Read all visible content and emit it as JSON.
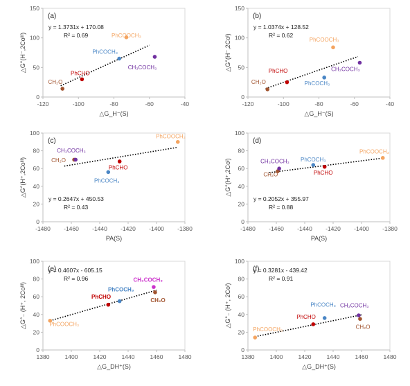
{
  "colors": {
    "CH2O": "#a0522d",
    "PhCHO": "#c00000",
    "PhCOCH3": "#4a86c5",
    "CH3COCH3": "#7030a0",
    "PhCOOCH3": "#f4a460",
    "CH3COCH3_e": "#cc33cc"
  },
  "chart_data": [
    {
      "id": "a",
      "type": "scatter",
      "panel_label": "(a)",
      "ylabel": "△G°(H⁻,2Coᴵᴵᴵ)",
      "xlabel": "△G_H⁻(S)",
      "xlim": [
        -120,
        -40
      ],
      "ylim": [
        0,
        150
      ],
      "xticks": [
        -120,
        -100,
        -80,
        -60,
        -40
      ],
      "yticks": [
        0,
        50,
        100,
        150
      ],
      "equation": "y = 1.3731x + 170.08",
      "r2": "R² = 0.69",
      "points": [
        {
          "name": "CH₂O",
          "key": "CH2O",
          "x": -109,
          "y": 14,
          "lx": -113,
          "ly": 22
        },
        {
          "name": "PhCHO",
          "key": "PhCHO",
          "x": -98,
          "y": 30,
          "lx": -99,
          "ly": 37
        },
        {
          "name": "PhCOCH₃",
          "key": "PhCOCH3",
          "x": -77,
          "y": 65,
          "lx": -85,
          "ly": 73
        },
        {
          "name": "CH₃COCH₃",
          "key": "CH3COCH3",
          "x": -57,
          "y": 68,
          "lx": -64,
          "ly": 47
        },
        {
          "name": "PhCOOCH₃",
          "key": "PhCOOCH3",
          "x": -73,
          "y": 101,
          "lx": -73,
          "ly": 101
        }
      ],
      "trend": {
        "slope": 1.3731,
        "intercept": 170.08,
        "x0": -110,
        "x1": -60
      }
    },
    {
      "id": "b",
      "type": "scatter",
      "panel_label": "(b)",
      "ylabel": "△G°(H⁻,2Coᴵ)",
      "xlabel": "△G_H⁻(S)",
      "xlim": [
        -120,
        -40
      ],
      "ylim": [
        0,
        150
      ],
      "xticks": [
        -120,
        -100,
        -80,
        -60,
        -40
      ],
      "yticks": [
        0,
        50,
        100,
        150
      ],
      "equation": "y = 1.0374x + 128.52",
      "r2": "R² = 0.62",
      "points": [
        {
          "name": "CH₂O",
          "key": "CH2O",
          "x": -109,
          "y": 13,
          "lx": -114,
          "ly": 22
        },
        {
          "name": "PhCHO",
          "key": "PhCHO",
          "x": -98,
          "y": 25,
          "lx": -103,
          "ly": 41
        },
        {
          "name": "PhCOCH₃",
          "key": "PhCOCH3",
          "x": -77,
          "y": 33,
          "lx": -81,
          "ly": 20
        },
        {
          "name": "CH₃COCH₃",
          "key": "CH3COCH3",
          "x": -57,
          "y": 58,
          "lx": -65,
          "ly": 44
        },
        {
          "name": "PhCOOCH₃",
          "key": "PhCOOCH3",
          "x": -72,
          "y": 84,
          "lx": -77,
          "ly": 94
        }
      ],
      "trend": {
        "slope": 1.0374,
        "intercept": 128.52,
        "x0": -110,
        "x1": -58
      }
    },
    {
      "id": "c",
      "type": "scatter",
      "panel_label": "(c)",
      "ylabel": "△G°(H⁺,2Coᴵᴵᴵ)",
      "xlabel": "PA(S)",
      "xlim": [
        -1480,
        -1380
      ],
      "ylim": [
        0,
        100
      ],
      "xticks": [
        -1480,
        -1460,
        -1440,
        -1420,
        -1400,
        -1380
      ],
      "yticks": [
        0,
        20,
        40,
        60,
        80,
        100
      ],
      "equation": "y = 0.2647x + 450.53",
      "r2": "R² = 0.43",
      "points": [
        {
          "name": "CH₂O",
          "key": "CH2O",
          "x": -1458,
          "y": 70,
          "lx": -1469,
          "ly": 67
        },
        {
          "name": "CH₃COCH₃",
          "key": "CH3COCH3",
          "x": -1457,
          "y": 70,
          "lx": -1460,
          "ly": 78
        },
        {
          "name": "PhCOCH₃",
          "key": "PhCOCH3",
          "x": -1434,
          "y": 56,
          "lx": -1435,
          "ly": 44
        },
        {
          "name": "PhCHO",
          "key": "PhCHO",
          "x": -1426,
          "y": 68,
          "lx": -1427,
          "ly": 59
        },
        {
          "name": "PhCOOCH₃",
          "key": "PhCOOCH3",
          "x": -1385,
          "y": 90,
          "lx": -1390,
          "ly": 94
        }
      ],
      "trend": {
        "slope": 0.2647,
        "intercept": 450.53,
        "x0": -1465,
        "x1": -1385
      }
    },
    {
      "id": "d",
      "type": "scatter",
      "panel_label": "(d)",
      "ylabel": "△G°(H⁺,2Coᴵ)",
      "xlabel": "PA(S)",
      "xlim": [
        -1480,
        -1380
      ],
      "ylim": [
        0,
        100
      ],
      "xticks": [
        -1480,
        -1460,
        -1440,
        -1420,
        -1400,
        -1380
      ],
      "yticks": [
        0,
        20,
        40,
        60,
        80,
        100
      ],
      "equation": "y = 0.2052x + 355.97",
      "r2": "R² = 0.88",
      "points": [
        {
          "name": "CH₂O",
          "key": "CH2O",
          "x": -1459,
          "y": 57,
          "lx": -1464,
          "ly": 51
        },
        {
          "name": "CH₃COCH₃",
          "key": "CH3COCH3",
          "x": -1458,
          "y": 60,
          "lx": -1461,
          "ly": 66
        },
        {
          "name": "PhCOCH₃",
          "key": "PhCOCH3",
          "x": -1434,
          "y": 64,
          "lx": -1434,
          "ly": 68
        },
        {
          "name": "PhCHO",
          "key": "PhCHO",
          "x": -1426,
          "y": 62,
          "lx": -1427,
          "ly": 53
        },
        {
          "name": "PhCOOCH₃",
          "key": "PhCOOCH3",
          "x": -1385,
          "y": 72,
          "lx": -1391,
          "ly": 77
        }
      ],
      "trend": {
        "slope": 0.2052,
        "intercept": 355.97,
        "x0": -1465,
        "x1": -1385
      }
    },
    {
      "id": "e",
      "type": "scatter",
      "panel_label": "(e)",
      "ylabel": "△G°₋ (H⁺, 2Coᴵᴵᴵ)",
      "xlabel": "△G_DH⁺(S)",
      "xlim": [
        1380,
        1480
      ],
      "ylim": [
        0,
        100
      ],
      "xticks": [
        1380,
        1400,
        1420,
        1440,
        1460,
        1480
      ],
      "yticks": [
        0,
        20,
        40,
        60,
        80,
        100
      ],
      "equation": "y = 0.4607x - 605.15",
      "r2": "R² = 0.96",
      "points": [
        {
          "name": "PhCOOCH₃",
          "key": "PhCOOCH3",
          "x": 1385,
          "y": 33,
          "lx": 1395,
          "ly": 27,
          "bold": false
        },
        {
          "name": "PhCHO",
          "key": "PhCHO",
          "x": 1426,
          "y": 51,
          "lx": 1421,
          "ly": 58,
          "bold": true
        },
        {
          "name": "PhCOCH₃",
          "key": "PhCOCH3",
          "x": 1434,
          "y": 55,
          "lx": 1435,
          "ly": 66,
          "bold": true
        },
        {
          "name": "CH₃COCH₃",
          "key": "CH3COCH3_e",
          "x": 1458,
          "y": 71,
          "lx": 1454,
          "ly": 77,
          "bold": true
        },
        {
          "name": "CH₂O",
          "key": "CH2O",
          "x": 1459,
          "y": 65,
          "lx": 1461,
          "ly": 54,
          "bold": true
        }
      ],
      "trend": {
        "slope": 0.4607,
        "intercept": -605.15,
        "x0": 1385,
        "x1": 1460
      }
    },
    {
      "id": "f",
      "type": "scatter",
      "panel_label": "(f)",
      "ylabel": "△G°₋ (H⁺, 2Coᴵ)",
      "xlabel": "△G_DH⁺(S)",
      "xlim": [
        1380,
        1480
      ],
      "ylim": [
        0,
        100
      ],
      "xticks": [
        1380,
        1400,
        1420,
        1440,
        1460,
        1480
      ],
      "yticks": [
        0,
        20,
        40,
        60,
        80,
        100
      ],
      "equation": "y = 0.3281x - 439.42",
      "r2": "R² = 0.91",
      "points": [
        {
          "name": "PhCOOCH₃",
          "key": "PhCOOCH3",
          "x": 1385,
          "y": 14,
          "lx": 1394,
          "ly": 21
        },
        {
          "name": "PhCHO",
          "key": "PhCHO",
          "x": 1426,
          "y": 29,
          "lx": 1421,
          "ly": 35
        },
        {
          "name": "PhCOCH₃",
          "key": "PhCOCH3",
          "x": 1434,
          "y": 36,
          "lx": 1433,
          "ly": 49
        },
        {
          "name": "CH₃COCH₃",
          "key": "CH3COCH3",
          "x": 1458,
          "y": 39,
          "lx": 1455,
          "ly": 48
        },
        {
          "name": "CH₂O",
          "key": "CH2O",
          "x": 1459,
          "y": 35,
          "lx": 1461,
          "ly": 24
        }
      ],
      "trend": {
        "slope": 0.3281,
        "intercept": -439.42,
        "x0": 1385,
        "x1": 1460
      }
    }
  ]
}
